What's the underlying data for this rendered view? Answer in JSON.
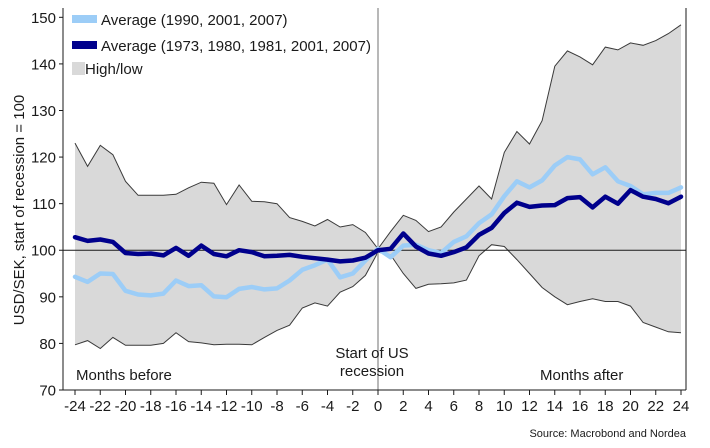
{
  "chart_data": {
    "type": "line",
    "ylabel": "USD/SEK, start of recession = 100",
    "ylim": [
      70,
      152
    ],
    "xlim": [
      -24,
      24
    ],
    "yticks": [
      70,
      80,
      90,
      100,
      110,
      120,
      130,
      140,
      150
    ],
    "xticks": [
      -24,
      -22,
      -20,
      -18,
      -16,
      -14,
      -12,
      -10,
      -8,
      -6,
      -4,
      -2,
      0,
      2,
      4,
      6,
      8,
      10,
      12,
      14,
      16,
      18,
      20,
      22,
      24
    ],
    "grid": false,
    "legend_position": "top-left",
    "reference_line_y": 100,
    "vertical_line_x": 0,
    "x": [
      -24,
      -23,
      -22,
      -21,
      -20,
      -19,
      -18,
      -17,
      -16,
      -15,
      -14,
      -13,
      -12,
      -11,
      -10,
      -9,
      -8,
      -7,
      -6,
      -5,
      -4,
      -3,
      -2,
      -1,
      0,
      1,
      2,
      3,
      4,
      5,
      6,
      7,
      8,
      9,
      10,
      11,
      12,
      13,
      14,
      15,
      16,
      17,
      18,
      19,
      20,
      21,
      22,
      23,
      24
    ],
    "series": [
      {
        "name": "Average (1990, 2001, 2007)",
        "color": "#9ccdf7",
        "values": [
          94.3,
          93.2,
          95.0,
          94.9,
          91.3,
          90.5,
          90.3,
          90.7,
          93.5,
          92.3,
          92.5,
          90.1,
          89.9,
          91.7,
          92.1,
          91.6,
          91.8,
          93.5,
          95.8,
          96.8,
          98.0,
          94.2,
          95.0,
          97.8,
          100.3,
          98.5,
          101.0,
          101.2,
          100.0,
          99.4,
          101.8,
          103.0,
          105.8,
          107.7,
          111.6,
          114.8,
          113.5,
          115.0,
          118.2,
          120.0,
          119.5,
          116.3,
          117.8,
          114.8,
          113.8,
          112.0,
          112.3,
          112.3,
          113.5
        ]
      },
      {
        "name": "Average (1973, 1980, 1981, 2001, 2007)",
        "color": "#00008c",
        "values": [
          102.8,
          102.0,
          102.3,
          101.8,
          99.4,
          99.2,
          99.3,
          98.9,
          100.5,
          98.8,
          101.0,
          99.2,
          98.7,
          100.0,
          99.6,
          98.7,
          98.8,
          99.0,
          98.6,
          98.3,
          98.0,
          97.6,
          97.8,
          98.4,
          100.0,
          100.3,
          103.6,
          100.8,
          99.3,
          98.8,
          99.6,
          100.6,
          103.3,
          104.8,
          108.0,
          110.2,
          109.3,
          109.6,
          109.7,
          111.2,
          111.4,
          109.2,
          111.5,
          110.0,
          112.9,
          111.5,
          111.0,
          110.1,
          111.5
        ]
      },
      {
        "name": "High/low",
        "color": "#d9d9d9",
        "high": [
          123.0,
          118.0,
          122.5,
          120.5,
          114.8,
          111.8,
          111.8,
          111.8,
          112.0,
          113.4,
          114.6,
          114.4,
          109.8,
          114.0,
          110.5,
          110.4,
          110.0,
          107.0,
          106.2,
          105.2,
          106.6,
          105.0,
          105.5,
          103.8,
          100.3,
          104.0,
          107.5,
          106.4,
          104.0,
          105.0,
          108.2,
          111.0,
          113.8,
          111.0,
          121.0,
          125.5,
          122.8,
          127.8,
          139.5,
          142.8,
          141.5,
          139.8,
          143.6,
          143.0,
          144.5,
          144.0,
          145.0,
          146.5,
          148.4
        ],
        "low": [
          79.7,
          80.6,
          78.9,
          81.3,
          79.6,
          79.6,
          79.6,
          80.0,
          82.3,
          80.4,
          80.1,
          79.7,
          79.8,
          79.8,
          79.7,
          81.3,
          82.8,
          83.9,
          87.6,
          88.7,
          88.0,
          91.0,
          92.2,
          94.6,
          99.6,
          99.0,
          95.0,
          91.8,
          92.7,
          92.8,
          93.0,
          93.6,
          98.8,
          101.2,
          100.8,
          98.0,
          95.0,
          92.0,
          90.0,
          88.3,
          89.0,
          89.6,
          89.0,
          89.0,
          88.0,
          84.5,
          83.5,
          82.5,
          82.3
        ]
      }
    ],
    "annotations": {
      "months_before": "Months before",
      "start_line1": "Start of US",
      "start_line2": "recession",
      "months_after": "Months after"
    },
    "source": "Source: Macrobond and Nordea"
  }
}
